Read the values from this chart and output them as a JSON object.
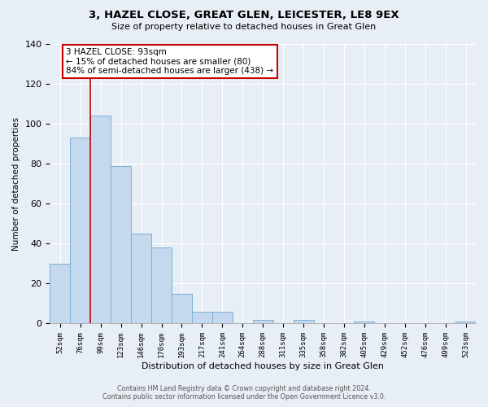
{
  "title": "3, HAZEL CLOSE, GREAT GLEN, LEICESTER, LE8 9EX",
  "subtitle": "Size of property relative to detached houses in Great Glen",
  "xlabel": "Distribution of detached houses by size in Great Glen",
  "ylabel": "Number of detached properties",
  "bar_labels": [
    "52sqm",
    "76sqm",
    "99sqm",
    "123sqm",
    "146sqm",
    "170sqm",
    "193sqm",
    "217sqm",
    "241sqm",
    "264sqm",
    "288sqm",
    "311sqm",
    "335sqm",
    "358sqm",
    "382sqm",
    "405sqm",
    "429sqm",
    "452sqm",
    "476sqm",
    "499sqm",
    "523sqm"
  ],
  "bar_values": [
    30,
    93,
    104,
    79,
    45,
    38,
    15,
    6,
    6,
    0,
    2,
    0,
    2,
    0,
    0,
    1,
    0,
    0,
    0,
    0,
    1
  ],
  "bar_color": "#c5d9ee",
  "bar_edge_color": "#7aafd4",
  "vline_color": "#cc0000",
  "vline_x_index": 1.5,
  "ylim": [
    0,
    140
  ],
  "yticks": [
    0,
    20,
    40,
    60,
    80,
    100,
    120,
    140
  ],
  "annotation_text": "3 HAZEL CLOSE: 93sqm\n← 15% of detached houses are smaller (80)\n84% of semi-detached houses are larger (438) →",
  "annotation_box_facecolor": "#ffffff",
  "annotation_box_edgecolor": "#cc0000",
  "footer_line1": "Contains HM Land Registry data © Crown copyright and database right 2024.",
  "footer_line2": "Contains public sector information licensed under the Open Government Licence v3.0.",
  "background_color": "#e8eef5",
  "grid_color": "#ffffff"
}
